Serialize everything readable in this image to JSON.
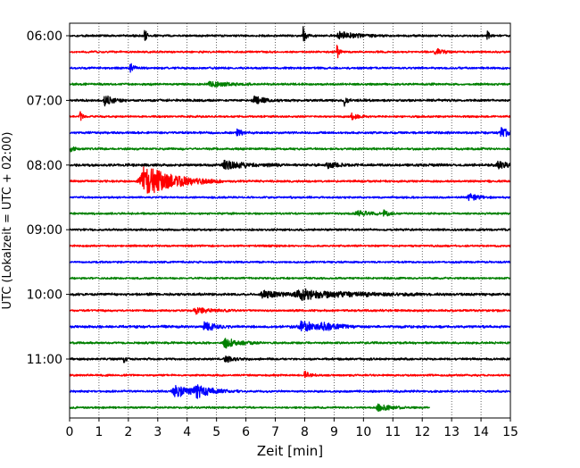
{
  "chart_data": {
    "type": "line",
    "title": "",
    "xlabel": "Zeit  [min]",
    "ylabel": "UTC (Lokalzeit = UTC + 02:00)",
    "xlim": [
      0,
      15
    ],
    "x_ticks": [
      "0",
      "1",
      "2",
      "3",
      "4",
      "5",
      "6",
      "7",
      "8",
      "9",
      "10",
      "11",
      "12",
      "13",
      "14",
      "15"
    ],
    "y_tick_labels": [
      "06:00",
      "07:00",
      "08:00",
      "09:00",
      "10:00",
      "11:00"
    ],
    "grid": "vertical dotted",
    "legend": "none",
    "trace_colors": [
      "#000000",
      "#ff0000",
      "#0000ff",
      "#008000"
    ],
    "traces": [
      {
        "start": "06:00",
        "color": "black",
        "noise": 0.1,
        "events": [
          {
            "t": 2.55,
            "amp": 1.0,
            "dur": 0.06
          },
          {
            "t": 7.95,
            "amp": 1.0,
            "dur": 0.08
          },
          {
            "t": 14.2,
            "amp": 0.85,
            "dur": 0.06
          },
          {
            "t": 9.2,
            "amp": 0.4,
            "dur": 0.6
          }
        ]
      },
      {
        "start": "06:15",
        "color": "red",
        "noise": 0.09,
        "events": [
          {
            "t": 9.1,
            "amp": 1.0,
            "dur": 0.06
          },
          {
            "t": 12.45,
            "amp": 0.45,
            "dur": 0.2
          }
        ]
      },
      {
        "start": "06:30",
        "color": "blue",
        "noise": 0.1,
        "events": [
          {
            "t": 2.05,
            "amp": 0.55,
            "dur": 0.12
          }
        ]
      },
      {
        "start": "06:45",
        "color": "green",
        "noise": 0.1,
        "events": [
          {
            "t": 4.8,
            "amp": 0.3,
            "dur": 0.5
          }
        ]
      },
      {
        "start": "07:00",
        "color": "black",
        "noise": 0.11,
        "events": [
          {
            "t": 1.2,
            "amp": 0.6,
            "dur": 0.25
          },
          {
            "t": 6.3,
            "amp": 0.45,
            "dur": 0.3
          },
          {
            "t": 9.35,
            "amp": 0.75,
            "dur": 0.08
          }
        ]
      },
      {
        "start": "07:15",
        "color": "red",
        "noise": 0.09,
        "events": [
          {
            "t": 0.35,
            "amp": 0.75,
            "dur": 0.06
          },
          {
            "t": 9.6,
            "amp": 0.35,
            "dur": 0.2
          }
        ]
      },
      {
        "start": "07:30",
        "color": "blue",
        "noise": 0.1,
        "events": [
          {
            "t": 5.7,
            "amp": 0.35,
            "dur": 0.2
          },
          {
            "t": 14.7,
            "amp": 0.5,
            "dur": 0.3
          }
        ]
      },
      {
        "start": "07:45",
        "color": "green",
        "noise": 0.1,
        "events": [
          {
            "t": 0.05,
            "amp": 0.35,
            "dur": 0.1
          }
        ]
      },
      {
        "start": "08:00",
        "color": "black",
        "noise": 0.12,
        "events": [
          {
            "t": 5.3,
            "amp": 0.45,
            "dur": 0.7
          },
          {
            "t": 8.8,
            "amp": 0.3,
            "dur": 0.4
          },
          {
            "t": 14.6,
            "amp": 0.35,
            "dur": 0.4
          }
        ]
      },
      {
        "start": "08:15",
        "color": "red",
        "noise": 0.1,
        "events": [
          {
            "t": 2.55,
            "amp": 1.8,
            "dur": 0.9
          }
        ]
      },
      {
        "start": "08:30",
        "color": "blue",
        "noise": 0.09,
        "events": [
          {
            "t": 13.6,
            "amp": 0.4,
            "dur": 0.3
          }
        ]
      },
      {
        "start": "08:45",
        "color": "green",
        "noise": 0.09,
        "events": [
          {
            "t": 10.7,
            "amp": 0.45,
            "dur": 0.12
          },
          {
            "t": 9.8,
            "amp": 0.25,
            "dur": 0.5
          }
        ]
      },
      {
        "start": "09:00",
        "color": "black",
        "noise": 0.1,
        "events": []
      },
      {
        "start": "09:15",
        "color": "red",
        "noise": 0.09,
        "events": []
      },
      {
        "start": "09:30",
        "color": "blue",
        "noise": 0.09,
        "events": []
      },
      {
        "start": "09:45",
        "color": "green",
        "noise": 0.09,
        "events": []
      },
      {
        "start": "10:00",
        "color": "black",
        "noise": 0.12,
        "events": [
          {
            "t": 7.9,
            "amp": 0.5,
            "dur": 1.4
          },
          {
            "t": 6.6,
            "amp": 0.35,
            "dur": 0.6
          }
        ]
      },
      {
        "start": "10:15",
        "color": "red",
        "noise": 0.1,
        "events": [
          {
            "t": 4.3,
            "amp": 0.3,
            "dur": 0.5
          }
        ]
      },
      {
        "start": "10:30",
        "color": "blue",
        "noise": 0.12,
        "events": [
          {
            "t": 4.6,
            "amp": 0.55,
            "dur": 0.3
          },
          {
            "t": 7.9,
            "amp": 0.6,
            "dur": 0.6
          },
          {
            "t": 8.6,
            "amp": 0.35,
            "dur": 0.4
          }
        ]
      },
      {
        "start": "10:45",
        "color": "green",
        "noise": 0.1,
        "events": [
          {
            "t": 5.3,
            "amp": 0.55,
            "dur": 0.4
          }
        ]
      },
      {
        "start": "11:00",
        "color": "black",
        "noise": 0.1,
        "events": [
          {
            "t": 1.85,
            "amp": 0.4,
            "dur": 0.08
          },
          {
            "t": 5.3,
            "amp": 0.35,
            "dur": 0.3
          }
        ]
      },
      {
        "start": "11:15",
        "color": "red",
        "noise": 0.09,
        "events": [
          {
            "t": 8.0,
            "amp": 0.4,
            "dur": 0.15
          }
        ]
      },
      {
        "start": "11:30",
        "color": "blue",
        "noise": 0.1,
        "events": [
          {
            "t": 3.6,
            "amp": 0.6,
            "dur": 0.6
          },
          {
            "t": 4.3,
            "amp": 0.55,
            "dur": 0.5
          }
        ]
      },
      {
        "start": "11:45",
        "color": "green",
        "noise": 0.09,
        "end": 12.25,
        "events": [
          {
            "t": 10.5,
            "amp": 0.35,
            "dur": 0.4
          }
        ]
      }
    ]
  }
}
